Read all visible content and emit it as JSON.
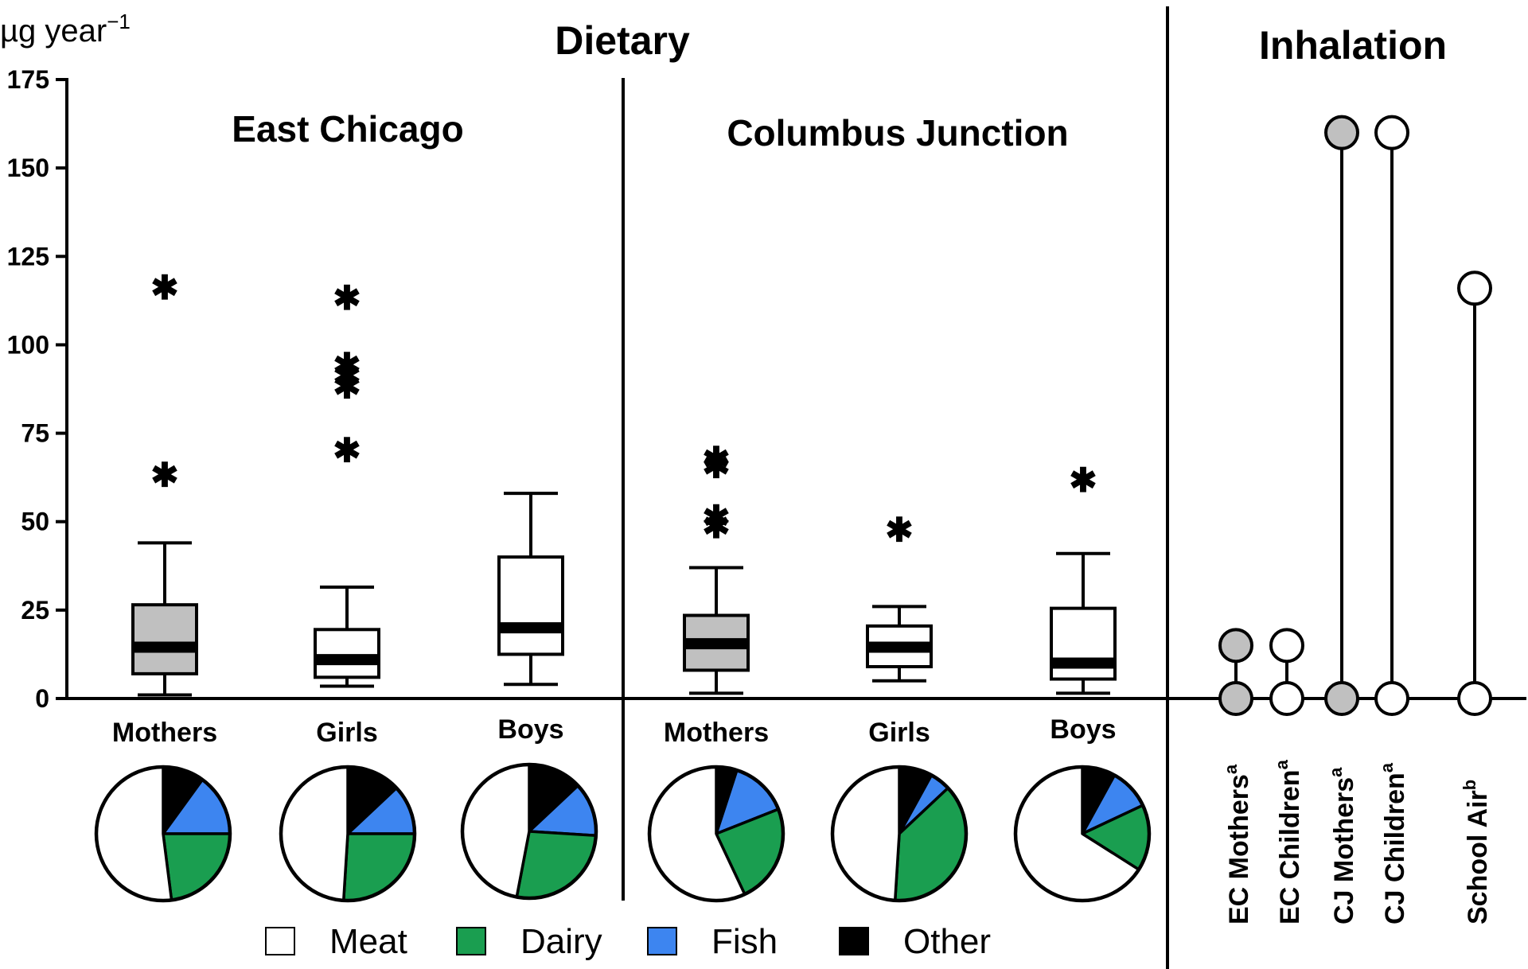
{
  "chart_data": {
    "type": "box",
    "y_unit": "µg year",
    "y_unit_exp": "−1",
    "ylim": [
      0,
      175
    ],
    "yticks": [
      0,
      25,
      50,
      75,
      100,
      125,
      150,
      175
    ],
    "sections": {
      "dietary": "Dietary",
      "inhalation": "Inhalation",
      "east_chicago": "East Chicago",
      "columbus_junction": "Columbus Junction"
    },
    "box_groups": [
      {
        "label": "Mothers",
        "site": "East Chicago",
        "fill": "#c0c0c0",
        "min": 1,
        "q1": 7,
        "median": 14.5,
        "q3": 26.5,
        "max": 44,
        "outliers": [
          64,
          117
        ]
      },
      {
        "label": "Girls",
        "site": "East Chicago",
        "fill": "#ffffff",
        "min": 3.5,
        "q1": 6,
        "median": 11,
        "q3": 19.5,
        "max": 31.5,
        "outliers": [
          71,
          89,
          92,
          95,
          114
        ]
      },
      {
        "label": "Boys",
        "site": "East Chicago",
        "fill": "#ffffff",
        "min": 4,
        "q1": 12.5,
        "median": 20,
        "q3": 40,
        "max": 58,
        "outliers": []
      },
      {
        "label": "Mothers",
        "site": "Columbus Junction",
        "fill": "#c0c0c0",
        "min": 1.5,
        "q1": 8,
        "median": 15.5,
        "q3": 23.5,
        "max": 37,
        "outliers": [
          49.5,
          52,
          66.5,
          68.5
        ]
      },
      {
        "label": "Girls",
        "site": "Columbus Junction",
        "fill": "#ffffff",
        "min": 5,
        "q1": 9,
        "median": 14.5,
        "q3": 20.5,
        "max": 26,
        "outliers": [
          48.5
        ]
      },
      {
        "label": "Boys",
        "site": "Columbus Junction",
        "fill": "#ffffff",
        "min": 1.5,
        "q1": 5.5,
        "median": 10,
        "q3": 25.5,
        "max": 41,
        "outliers": [
          62.5
        ]
      }
    ],
    "pies": [
      {
        "group": "EC Mothers",
        "meat": 52,
        "dairy": 23,
        "fish": 15,
        "other": 10
      },
      {
        "group": "EC Girls",
        "meat": 49,
        "dairy": 26,
        "fish": 12,
        "other": 13
      },
      {
        "group": "EC Boys",
        "meat": 47,
        "dairy": 27,
        "fish": 13,
        "other": 13
      },
      {
        "group": "CJ Mothers",
        "meat": 57,
        "dairy": 24,
        "fish": 14,
        "other": 5
      },
      {
        "group": "CJ Girls",
        "meat": 49,
        "dairy": 38,
        "fish": 5,
        "other": 8
      },
      {
        "group": "CJ Boys",
        "meat": 66,
        "dairy": 16,
        "fish": 10,
        "other": 8
      }
    ],
    "legend": [
      {
        "label": "Meat",
        "color": "#ffffff"
      },
      {
        "label": "Dairy",
        "color": "#1a9e50"
      },
      {
        "label": "Fish",
        "color": "#3d85f0"
      },
      {
        "label": "Other",
        "color": "#000000"
      }
    ],
    "inhalation": [
      {
        "label": "EC Mothers",
        "sup": "a",
        "low": 0,
        "high": 15,
        "fill": "#c0c0c0"
      },
      {
        "label": "EC Children",
        "sup": "a",
        "low": 0,
        "high": 15,
        "fill": "#ffffff"
      },
      {
        "label": "CJ Mothers",
        "sup": "a",
        "low": 0,
        "high": 160,
        "fill": "#c0c0c0"
      },
      {
        "label": "CJ Children",
        "sup": "a",
        "low": 0,
        "high": 160,
        "fill": "#ffffff"
      },
      {
        "label": "School Air",
        "sup": "b",
        "low": 0,
        "high": 116,
        "fill": "#ffffff"
      }
    ]
  }
}
